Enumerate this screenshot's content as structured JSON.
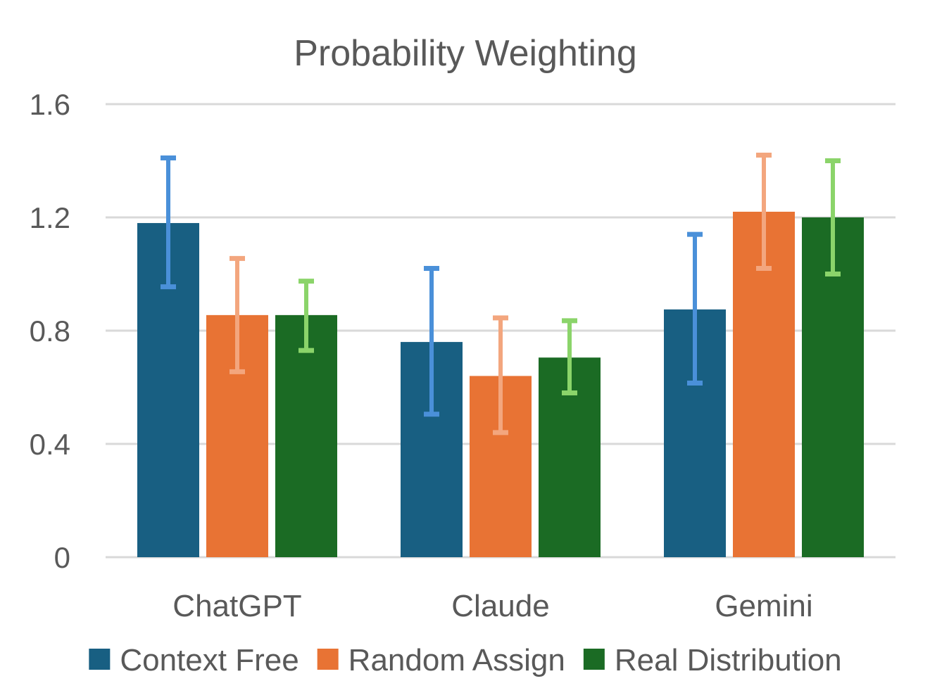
{
  "chart_data": {
    "type": "bar",
    "title": "Probability Weighting",
    "xlabel": "",
    "ylabel": "",
    "categories": [
      "ChatGPT",
      "Claude",
      "Gemini"
    ],
    "ylim": [
      0,
      1.6
    ],
    "yticks": [
      0,
      0.4,
      0.8,
      1.2,
      1.6
    ],
    "ytick_labels": [
      "0",
      "0.4",
      "0.8",
      "1.2",
      "1.6"
    ],
    "grid": true,
    "legend_position": "bottom",
    "series": [
      {
        "name": "Context Free",
        "color": "#185f82",
        "error_color": "#4a90d9",
        "values": [
          1.18,
          0.76,
          0.875
        ],
        "error_low": [
          0.955,
          0.505,
          0.615
        ],
        "error_high": [
          1.41,
          1.02,
          1.14
        ]
      },
      {
        "name": "Random Assign",
        "color": "#e87334",
        "error_color": "#f3a67e",
        "values": [
          0.855,
          0.64,
          1.22
        ],
        "error_low": [
          0.655,
          0.44,
          1.02
        ],
        "error_high": [
          1.055,
          0.845,
          1.42
        ]
      },
      {
        "name": "Real Distribution",
        "color": "#1b6b24",
        "error_color": "#8bd46a",
        "values": [
          0.855,
          0.705,
          1.2
        ],
        "error_low": [
          0.73,
          0.58,
          1.0
        ],
        "error_high": [
          0.975,
          0.835,
          1.4
        ]
      }
    ]
  }
}
